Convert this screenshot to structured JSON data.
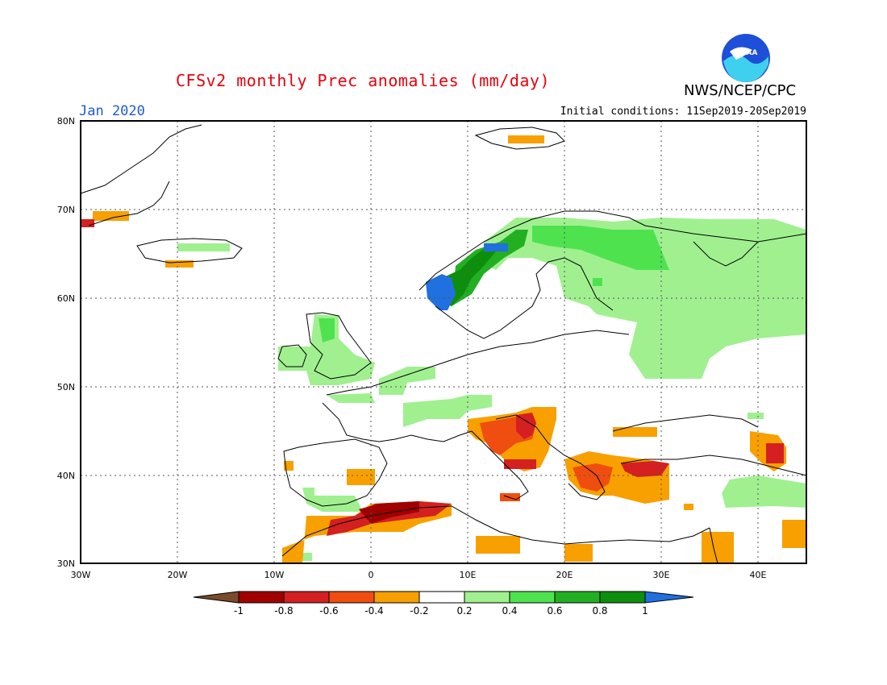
{
  "header": {
    "title": "CFSv2 monthly Prec anomalies (mm/day)",
    "month": "Jan 2020",
    "initial_conditions": "Initial conditions: 11Sep2019-20Sep2019",
    "agency": "NWS/NCEP/CPC",
    "logo_text": "NOAA"
  },
  "axes": {
    "lat_ticks": [
      "80N",
      "70N",
      "60N",
      "50N",
      "40N",
      "30N"
    ],
    "lon_ticks": [
      "30W",
      "20W",
      "10W",
      "0",
      "10E",
      "20E",
      "30E",
      "40E"
    ]
  },
  "colorbar": {
    "labels": [
      "-1",
      "-0.8",
      "-0.6",
      "-0.4",
      "-0.2",
      "0.2",
      "0.4",
      "0.6",
      "0.8",
      "1"
    ],
    "colors": {
      "below_-1": "#7a4a2a",
      "-1_-0.8": "#a00000",
      "-0.8_-0.6": "#d42020",
      "-0.6_-0.4": "#f04e10",
      "-0.4_-0.2": "#f7a000",
      "-0.2_0.2": "#ffffff",
      "0.2_0.4": "#a0f090",
      "0.4_0.6": "#4fe24f",
      "0.6_0.8": "#22b022",
      "0.8_1": "#0d8f0d",
      "above_1": "#2070e0"
    }
  }
}
